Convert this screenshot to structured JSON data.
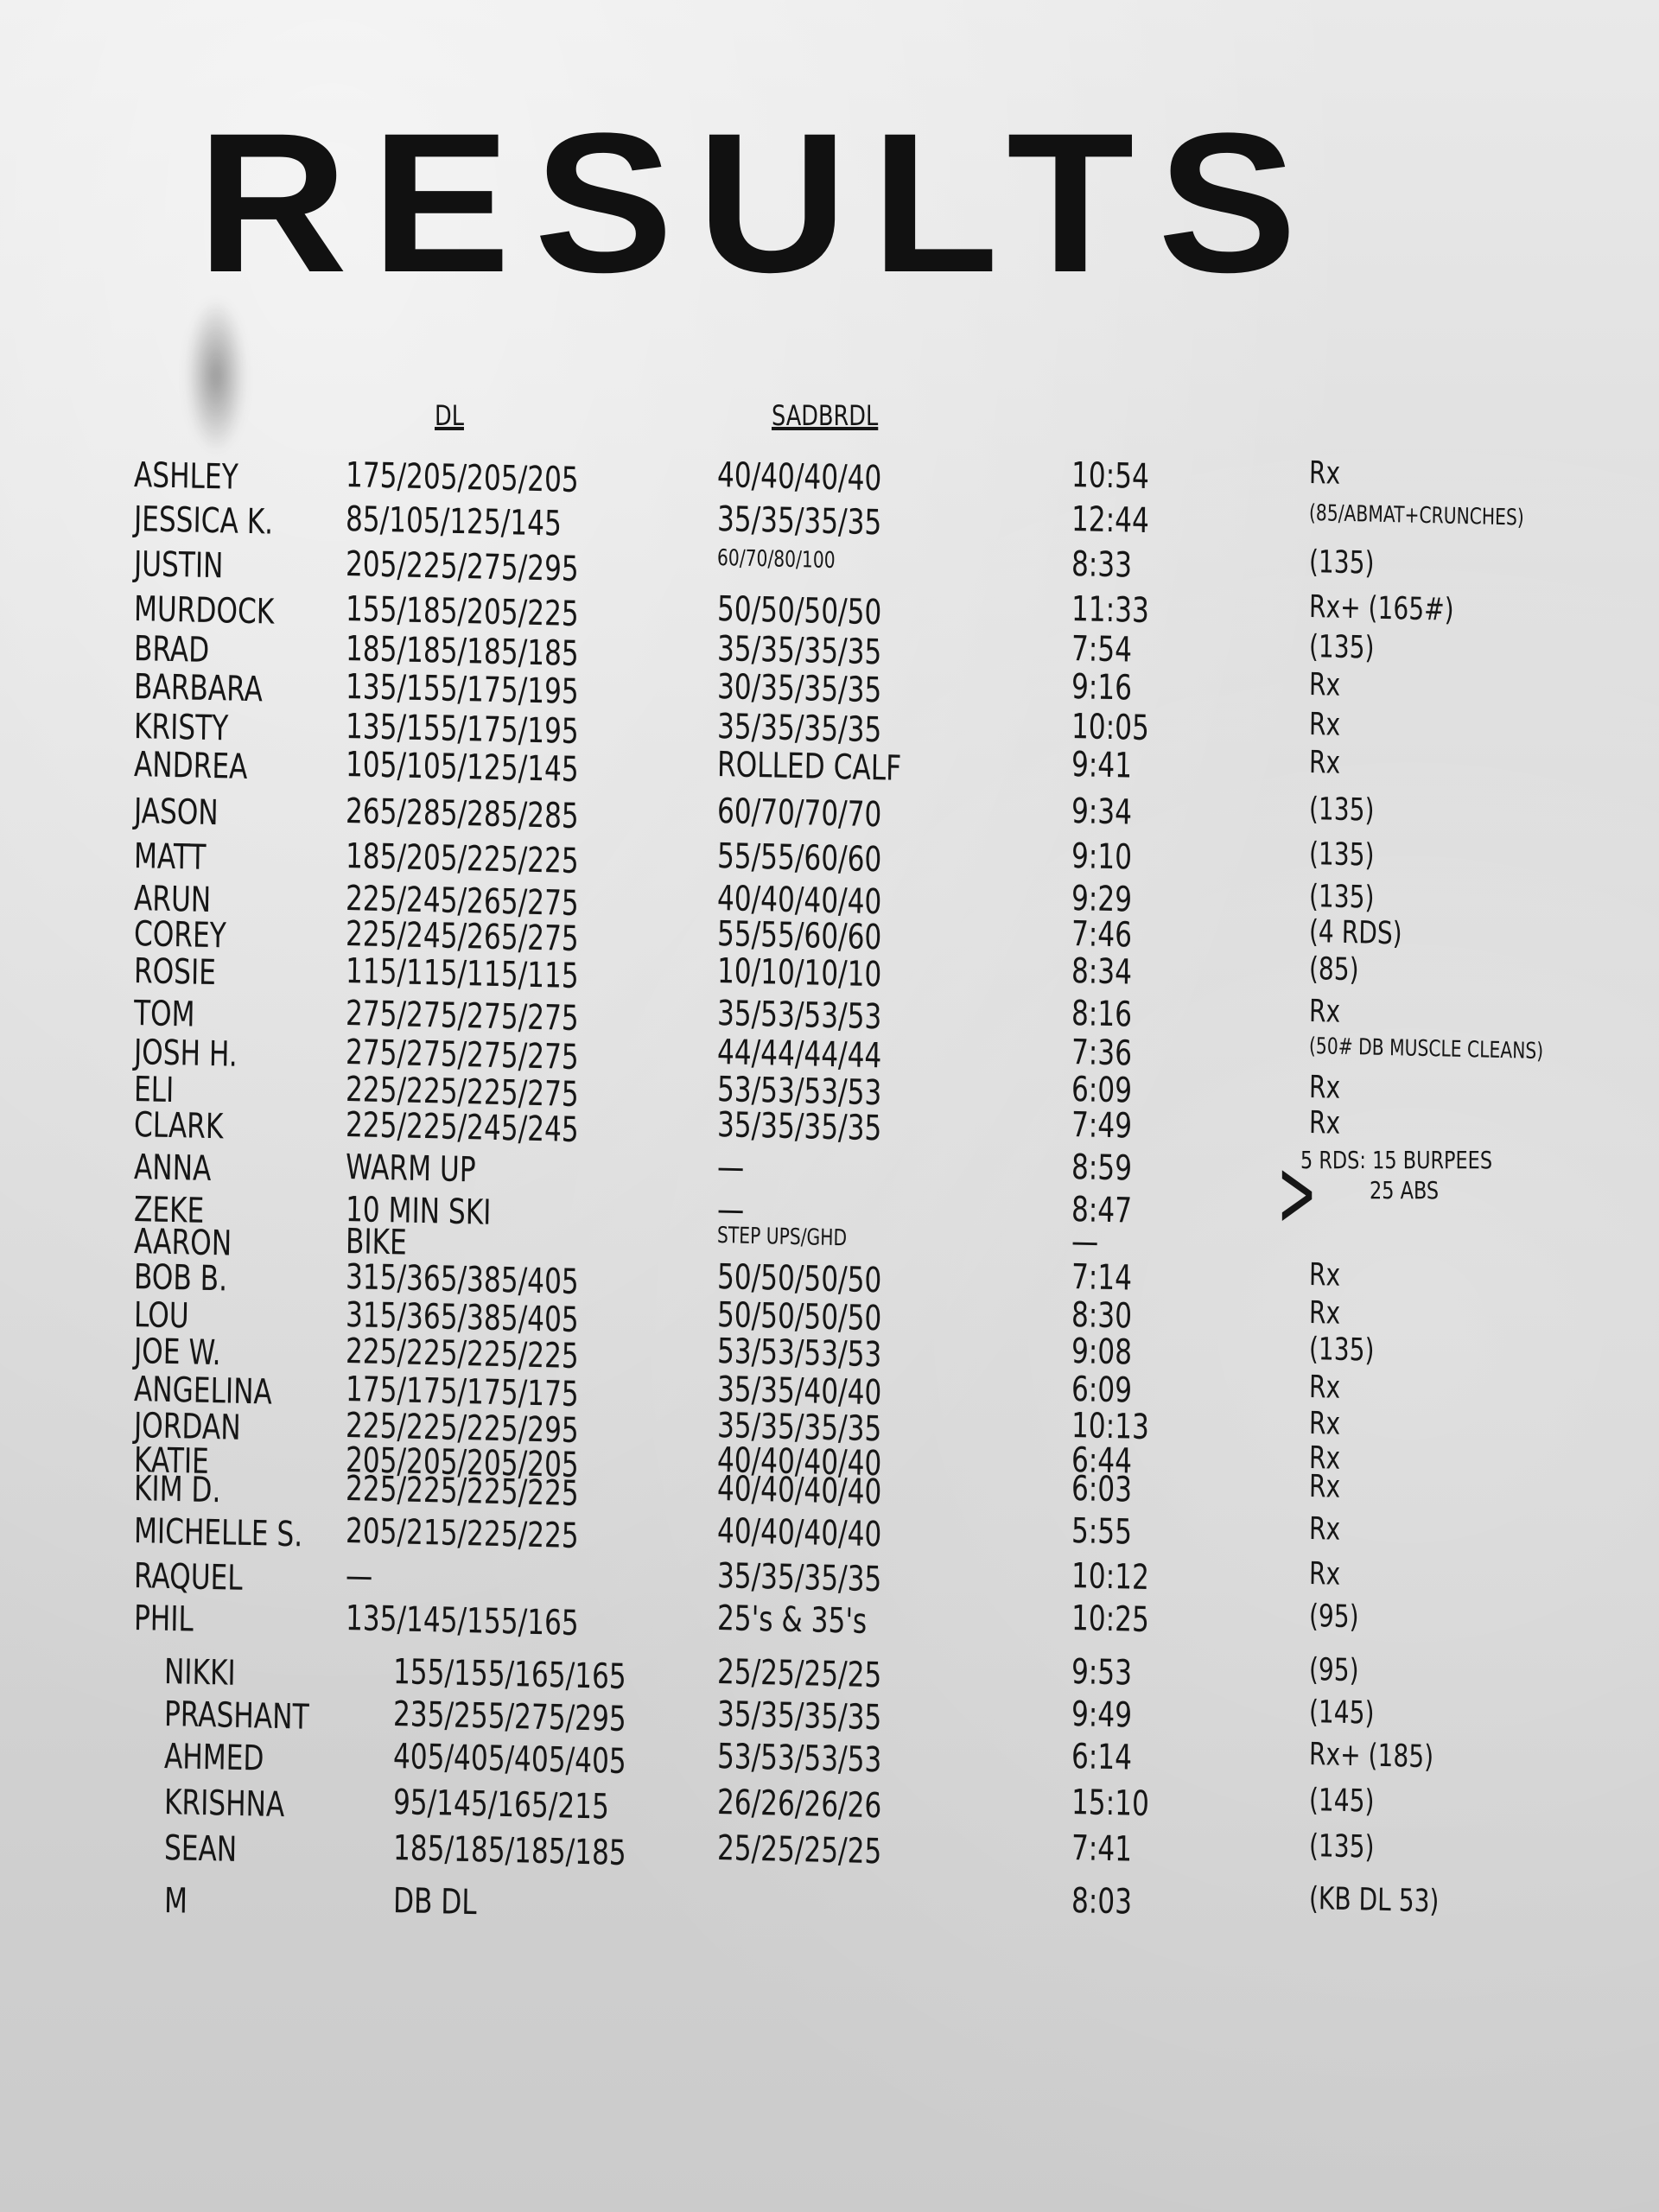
{
  "title": "RESULTS",
  "columns": {
    "dl": "DL",
    "sadbrdl": "SADBRDL"
  },
  "rows": [
    {
      "name": "ASHLEY",
      "dl": "175/205/205/205",
      "sadbrdl": "40/40/40/40",
      "time": "10:54",
      "note": "Rx"
    },
    {
      "name": "JESSICA K.",
      "dl": "85/105/125/145",
      "sadbrdl": "35/35/35/35",
      "time": "12:44",
      "note": "(85/ABMAT+CRUNCHES)"
    },
    {
      "name": "JUSTIN",
      "dl": "205/225/275/295",
      "sadbrdl": "60/70/80/100",
      "time": "8:33",
      "note": "(135)"
    },
    {
      "name": "MURDOCK",
      "dl": "155/185/205/225",
      "sadbrdl": "50/50/50/50",
      "time": "11:33",
      "note": "Rx+ (165#)"
    },
    {
      "name": "BRAD",
      "dl": "185/185/185/185",
      "sadbrdl": "35/35/35/35",
      "time": "7:54",
      "note": "(135)"
    },
    {
      "name": "BARBARA",
      "dl": "135/155/175/195",
      "sadbrdl": "30/35/35/35",
      "time": "9:16",
      "note": "Rx"
    },
    {
      "name": "KRISTY",
      "dl": "135/155/175/195",
      "sadbrdl": "35/35/35/35",
      "time": "10:05",
      "note": "Rx"
    },
    {
      "name": "ANDREA",
      "dl": "105/105/125/145",
      "sadbrdl": "ROLLED CALF",
      "time": "9:41",
      "note": "Rx"
    },
    {
      "name": "JASON",
      "dl": "265/285/285/285",
      "sadbrdl": "60/70/70/70",
      "time": "9:34",
      "note": "(135)"
    },
    {
      "name": "MATT",
      "dl": "185/205/225/225",
      "sadbrdl": "55/55/60/60",
      "time": "9:10",
      "note": "(135)"
    },
    {
      "name": "ARUN",
      "dl": "225/245/265/275",
      "sadbrdl": "40/40/40/40",
      "time": "9:29",
      "note": "(135)"
    },
    {
      "name": "COREY",
      "dl": "225/245/265/275",
      "sadbrdl": "55/55/60/60",
      "time": "7:46",
      "note": "(4 RDS)"
    },
    {
      "name": "ROSIE",
      "dl": "115/115/115/115",
      "sadbrdl": "10/10/10/10",
      "time": "8:34",
      "note": "(85)"
    },
    {
      "name": "TOM",
      "dl": "275/275/275/275",
      "sadbrdl": "35/53/53/53",
      "time": "8:16",
      "note": "Rx"
    },
    {
      "name": "JOSH H.",
      "dl": "275/275/275/275",
      "sadbrdl": "44/44/44/44",
      "time": "7:36",
      "note": "(50# DB MUSCLE CLEANS)"
    },
    {
      "name": "ELI",
      "dl": "225/225/225/275",
      "sadbrdl": "53/53/53/53",
      "time": "6:09",
      "note": "Rx"
    },
    {
      "name": "CLARK",
      "dl": "225/225/245/245",
      "sadbrdl": "35/35/35/35",
      "time": "7:49",
      "note": "Rx"
    },
    {
      "name": "ANNA",
      "dl": "WARM UP",
      "sadbrdl": "—",
      "time": "8:59",
      "note": ""
    },
    {
      "name": "ZEKE",
      "dl": "10 MIN SKI",
      "sadbrdl": "—",
      "time": "8:47",
      "note": ""
    },
    {
      "name": "AARON",
      "dl": "BIKE",
      "sadbrdl": "STEP UPS/GHD",
      "time": "—",
      "note": ""
    },
    {
      "name": "BOB B.",
      "dl": "315/365/385/405",
      "sadbrdl": "50/50/50/50",
      "time": "7:14",
      "note": "Rx"
    },
    {
      "name": "LOU",
      "dl": "315/365/385/405",
      "sadbrdl": "50/50/50/50",
      "time": "8:30",
      "note": "Rx"
    },
    {
      "name": "JOE W.",
      "dl": "225/225/225/225",
      "sadbrdl": "53/53/53/53",
      "time": "9:08",
      "note": "(135)"
    },
    {
      "name": "ANGELINA",
      "dl": "175/175/175/175",
      "sadbrdl": "35/35/40/40",
      "time": "6:09",
      "note": "Rx"
    },
    {
      "name": "JORDAN",
      "dl": "225/225/225/295",
      "sadbrdl": "35/35/35/35",
      "time": "10:13",
      "note": "Rx"
    },
    {
      "name": "KATIE",
      "dl": "205/205/205/205",
      "sadbrdl": "40/40/40/40",
      "time": "6:44",
      "note": "Rx"
    },
    {
      "name": "KIM D.",
      "dl": "225/225/225/225",
      "sadbrdl": "40/40/40/40",
      "time": "6:03",
      "note": "Rx"
    },
    {
      "name": "MICHELLE S.",
      "dl": "205/215/225/225",
      "sadbrdl": "40/40/40/40",
      "time": "5:55",
      "note": "Rx"
    },
    {
      "name": "RAQUEL",
      "dl": "—",
      "sadbrdl": "35/35/35/35",
      "time": "10:12",
      "note": "Rx"
    },
    {
      "name": "PHIL",
      "dl": "135/145/155/165",
      "sadbrdl": "25's & 35's",
      "time": "10:25",
      "note": "(95)"
    },
    {
      "name": "NIKKI",
      "dl": "155/155/165/165",
      "sadbrdl": "25/25/25/25",
      "time": "9:53",
      "note": "(95)"
    },
    {
      "name": "PRASHANT",
      "dl": "235/255/275/295",
      "sadbrdl": "35/35/35/35",
      "time": "9:49",
      "note": "(145)"
    },
    {
      "name": "AHMED",
      "dl": "405/405/405/405",
      "sadbrdl": "53/53/53/53",
      "time": "6:14",
      "note": "Rx+ (185)"
    },
    {
      "name": "KRISHNA",
      "dl": "95/145/165/215",
      "sadbrdl": "26/26/26/26",
      "time": "15:10",
      "note": "(145)"
    },
    {
      "name": "SEAN",
      "dl": "185/185/185/185",
      "sadbrdl": "25/25/25/25",
      "time": "7:41",
      "note": "(135)"
    },
    {
      "name": "M",
      "dl": "DB DL",
      "sadbrdl": "",
      "time": "8:03",
      "note": "(KB DL 53)"
    }
  ],
  "group_note": {
    "rounds": "5 RDS:",
    "line1": "15 BURPEES",
    "line2": "25 ABS"
  }
}
